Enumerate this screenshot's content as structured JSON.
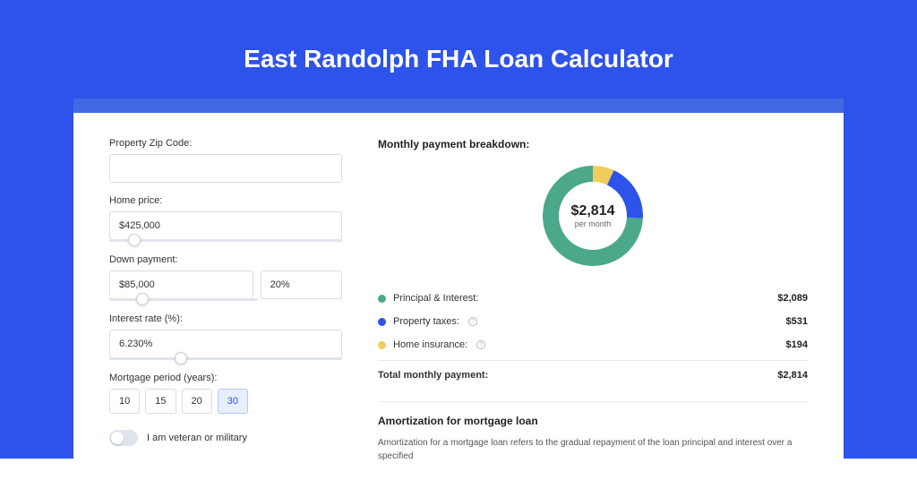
{
  "page": {
    "title": "East Randolph FHA Loan Calculator",
    "bg_color": "#2e53ea",
    "shadow_color": "#4169e1",
    "card_bg": "#ffffff"
  },
  "form": {
    "zip": {
      "label": "Property Zip Code:",
      "value": ""
    },
    "price": {
      "label": "Home price:",
      "value": "$425,000",
      "slider_pct": 8
    },
    "down": {
      "label": "Down payment:",
      "value": "$85,000",
      "pct": "20%",
      "slider_pct": 18
    },
    "rate": {
      "label": "Interest rate (%):",
      "value": "6.230%",
      "slider_pct": 28
    },
    "period": {
      "label": "Mortgage period (years):",
      "options": [
        "10",
        "15",
        "20",
        "30"
      ],
      "active_index": 3
    },
    "veteran": {
      "label": "I am veteran or military",
      "on": false
    }
  },
  "breakdown": {
    "title": "Monthly payment breakdown:",
    "donut": {
      "amount": "$2,814",
      "sub": "per month",
      "slices": [
        {
          "label": "Principal & Interest:",
          "value": "$2,089",
          "color": "#4ba88a",
          "pct": 74.2
        },
        {
          "label": "Property taxes:",
          "value": "$531",
          "color": "#2e53ea",
          "pct": 18.9,
          "info": true
        },
        {
          "label": "Home insurance:",
          "value": "$194",
          "color": "#f2cd5d",
          "pct": 6.9,
          "info": true
        }
      ],
      "ring_width": 18
    },
    "total": {
      "label": "Total monthly payment:",
      "value": "$2,814"
    }
  },
  "amort": {
    "title": "Amortization for mortgage loan",
    "text": "Amortization for a mortgage loan refers to the gradual repayment of the loan principal and interest over a specified"
  }
}
